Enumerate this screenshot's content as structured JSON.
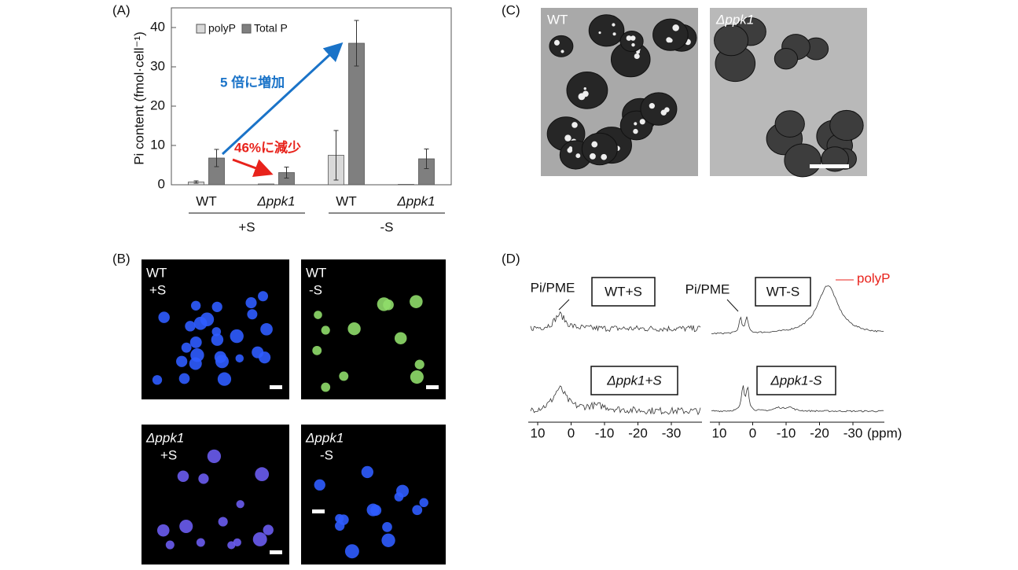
{
  "chart_data": {
    "type": "bar",
    "ylabel": "Pi content (fmol·cell⁻¹)",
    "categories": [
      "WT",
      "Δppk1",
      "WT",
      "Δppk1"
    ],
    "group_labels": [
      "+S",
      "-S"
    ],
    "series": [
      {
        "name": "polyP",
        "color": "#d9d9d9",
        "values": [
          0.7,
          0.2,
          7.5,
          0.1
        ],
        "errors": [
          0.3,
          null,
          6.3,
          null
        ]
      },
      {
        "name": "Total P",
        "color": "#7f7f7f",
        "values": [
          6.8,
          3.1,
          36,
          6.6
        ],
        "errors": [
          2.2,
          1.4,
          5.8,
          2.5
        ]
      }
    ],
    "ylim": [
      0,
      45
    ],
    "yticks": [
      0,
      10,
      20,
      30,
      40
    ],
    "annotations": [
      {
        "text": "5 倍に増加",
        "color": "#1a73c8"
      },
      {
        "text": "46%に減少",
        "color": "#e8221b"
      }
    ]
  },
  "panel_labels": [
    "(A)",
    "(B)",
    "(C)",
    "(D)"
  ],
  "fluorescence": [
    {
      "strain": "WT",
      "condition": "+S"
    },
    {
      "strain": "WT",
      "condition": "-S"
    },
    {
      "strain": "Δppk1",
      "condition": "+S"
    },
    {
      "strain": "Δppk1",
      "condition": "-S"
    }
  ],
  "tem": [
    "WT",
    "Δppk1"
  ],
  "nmr": {
    "peak_label": "Pi/PME",
    "spectra": [
      "WT+S",
      "WT-S",
      "Δppk1+S",
      "Δppk1-S"
    ],
    "polyp_label": "polyP",
    "xticks": [
      10,
      0,
      -10,
      -20,
      -30
    ],
    "unit": "(ppm)"
  }
}
